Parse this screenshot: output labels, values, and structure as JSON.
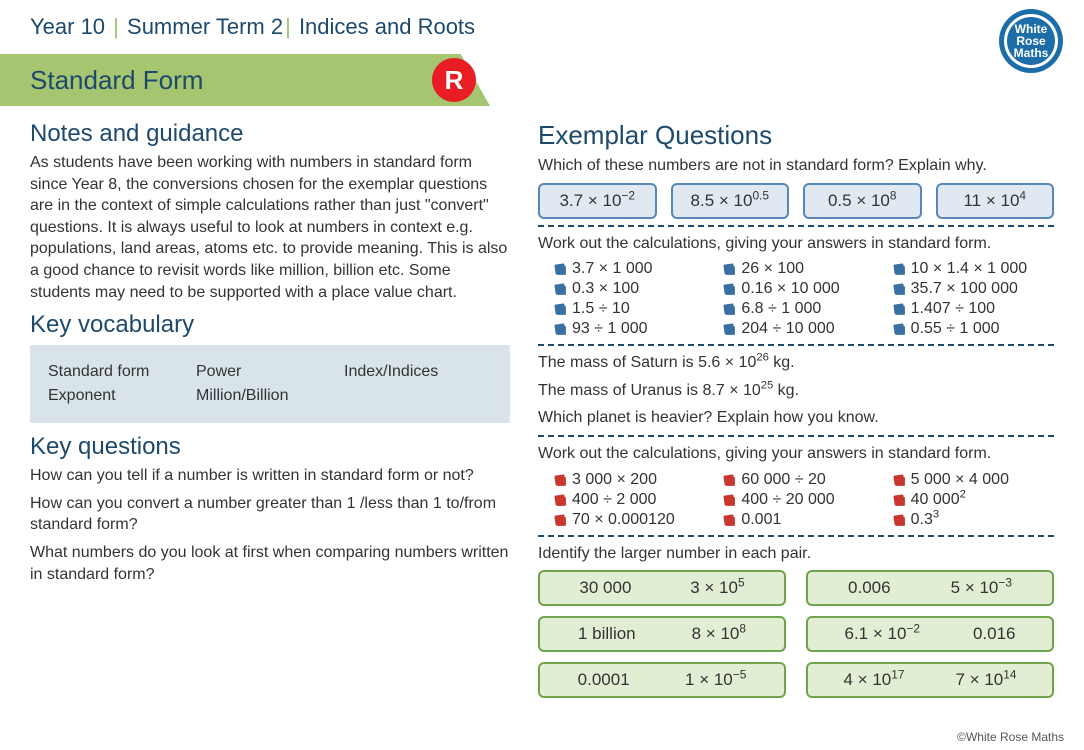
{
  "header": {
    "year": "Year 10",
    "term": "Summer Term 2",
    "unit": "Indices and Roots"
  },
  "logo_lines": [
    "White",
    "Rose",
    "Maths"
  ],
  "topic_title": "Standard Form",
  "r_badge": "R",
  "left": {
    "notes_h": "Notes and guidance",
    "notes": "As students have been working with numbers in standard form since Year 8, the conversions chosen for the exemplar questions are in the context of simple calculations rather than just \"convert\" questions. It is always useful to look at numbers in context e.g. populations, land areas, atoms etc. to provide meaning. This is also a good chance to revisit words like million, billion etc. Some students may need to be supported with a place value chart.",
    "vocab_h": "Key vocabulary",
    "vocab": [
      [
        "Standard form",
        "Power",
        "Index/Indices"
      ],
      [
        "Exponent",
        "Million/Billion",
        ""
      ]
    ],
    "kq_h": "Key questions",
    "kq": [
      "How can you tell if a number is written in standard form or not?",
      "How can you convert a number greater than 1 /less than 1 to/from standard form?",
      "What numbers do you look at first when comparing numbers written in standard form?"
    ]
  },
  "right": {
    "exemplar_h": "Exemplar Questions",
    "q1_prompt": "Which of these numbers are not in standard form? Explain why.",
    "q1_boxes": [
      {
        "base": "3.7 × 10",
        "exp": "−2"
      },
      {
        "base": "8.5 × 10",
        "exp": "0.5"
      },
      {
        "base": "0.5 × 10",
        "exp": "8"
      },
      {
        "base": "11 × 10",
        "exp": "4"
      }
    ],
    "q2_prompt": "Work out the calculations, giving your answers in standard form.",
    "q2_items": [
      "3.7 × 1 000",
      "26 × 100",
      "10 × 1.4 × 1 000",
      "0.3 × 100",
      "0.16 × 10 000",
      "35.7 × 100 000",
      "1.5 ÷ 10",
      "6.8 ÷ 1 000",
      "1.407 ÷ 100",
      "93 ÷ 1 000",
      "204 ÷ 10 000",
      "0.55 ÷ 1 000"
    ],
    "q3_l1a": "The mass of Saturn is 5.6 × 10",
    "q3_l1b": " kg.",
    "q3_exp1": "26",
    "q3_l2a": "The mass of Uranus is 8.7 × 10",
    "q3_l2b": " kg.",
    "q3_exp2": "25",
    "q3_l3": "Which planet is heavier? Explain how you know.",
    "q4_prompt": "Work out the calculations, giving your answers in standard form.",
    "q4_items": [
      {
        "t": "3 000 × 200"
      },
      {
        "t": "60 000 ÷ 20"
      },
      {
        "t": "5 000 × 4 000"
      },
      {
        "t": "400 ÷ 2 000"
      },
      {
        "t": "400 ÷ 20 000"
      },
      {
        "t": "40 000",
        "sup": "2"
      },
      {
        "t": "70 × 0.000120"
      },
      {
        "t": "0.001"
      },
      {
        "t": "0.3",
        "sup": "3"
      }
    ],
    "q5_prompt": "Identify the larger number in each pair.",
    "q5_pairs": [
      {
        "a": "30 000",
        "b": "3 × 10",
        "bexp": "5"
      },
      {
        "a": "0.006",
        "b": "5 × 10",
        "bexp": "−3"
      },
      {
        "a": "1 billion",
        "b": "8 × 10",
        "bexp": "8"
      },
      {
        "a": "6.1 × 10",
        "aexp": "−2",
        "b": "0.016"
      },
      {
        "a": "0.0001",
        "b": "1 × 10",
        "bexp": "−5"
      },
      {
        "a": "4 × 10",
        "aexp": "17",
        "b": "7 × 10",
        "bexp": "14"
      }
    ]
  },
  "footer": "©White Rose Maths",
  "bullet_colors": {
    "blue": "#3b6fa3",
    "red": "#c9362f"
  }
}
